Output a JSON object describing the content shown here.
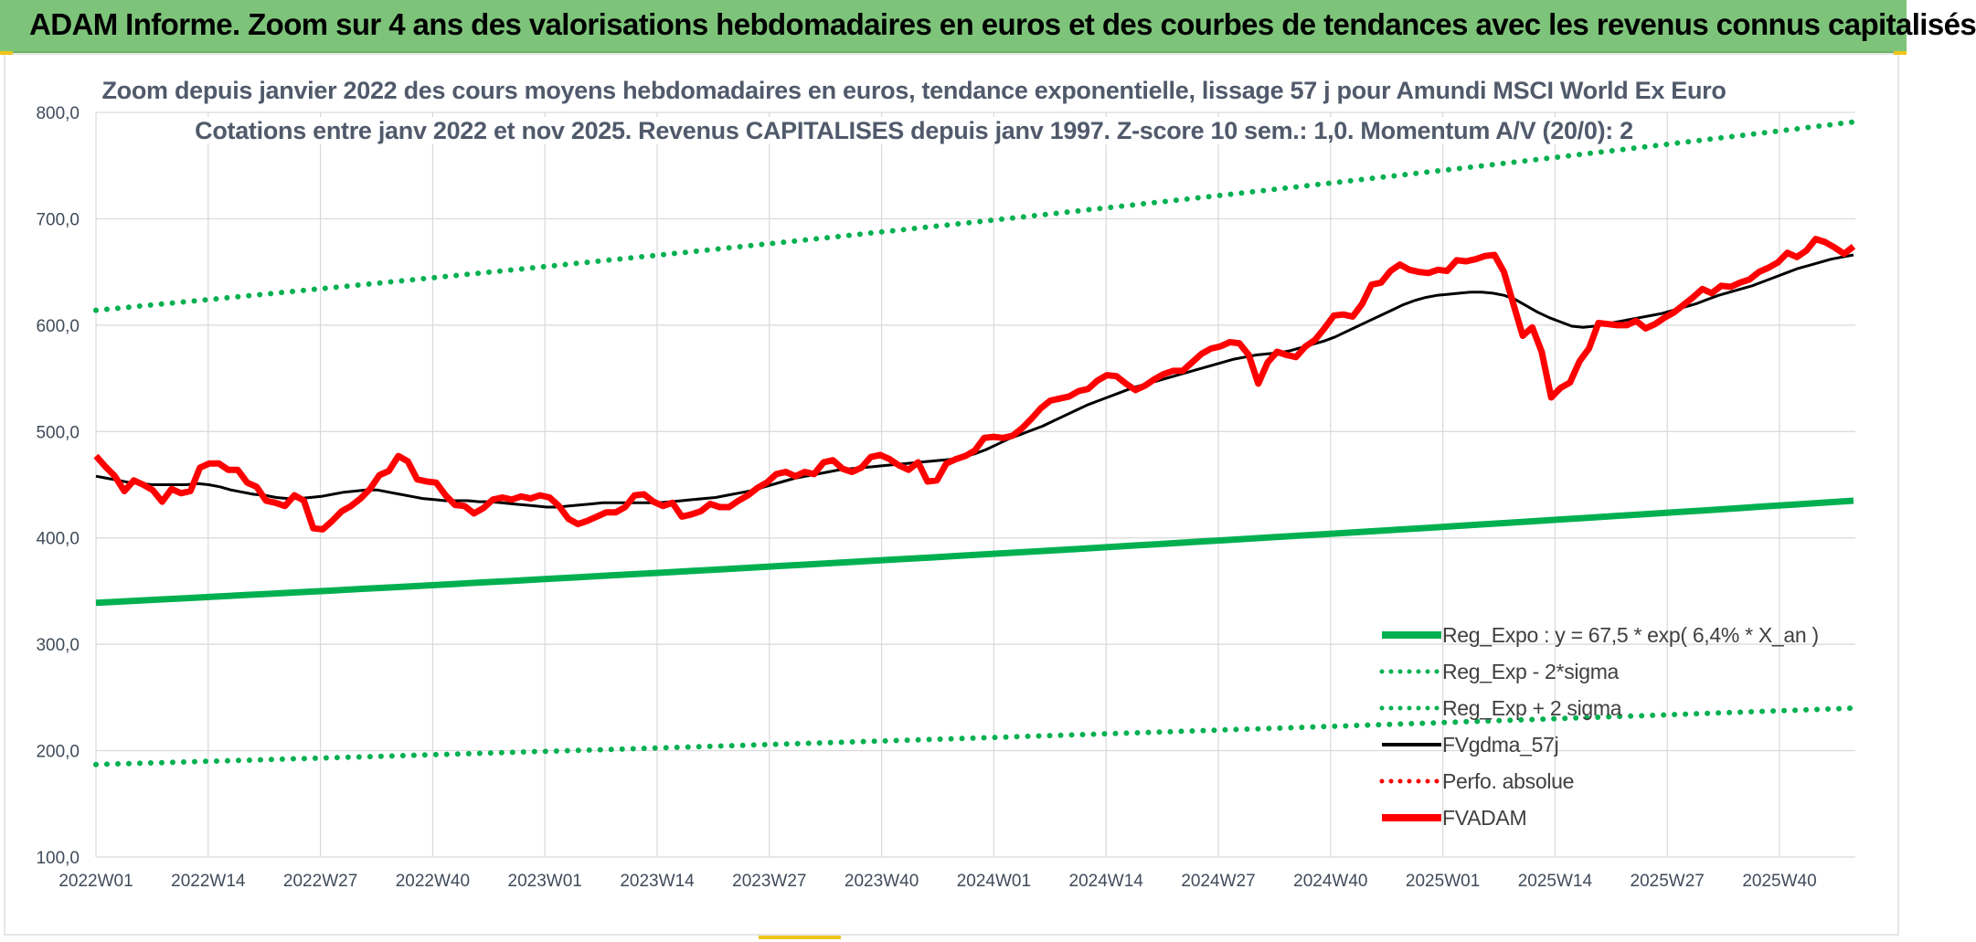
{
  "header": {
    "title": "ADAM Informe. Zoom sur 4 ans des valorisations hebdomadaires en euros et des courbes de tendances avec les revenus connus capitalisés"
  },
  "colors": {
    "banner": "#7dc47a",
    "reg_expo": "#00b050",
    "fvgdma": "#000000",
    "fvadam": "#ff0000",
    "grid": "#d9d9d9",
    "axis_text": "#404b5a"
  },
  "chart_data": {
    "type": "line",
    "title": "Zoom depuis janvier 2022 des cours moyens hebdomadaires en euros, tendance exponentielle, lissage 57 j pour Amundi MSCI World Ex Euro",
    "subtitle": "Cotations entre janv 2022 et nov 2025. Revenus CAPITALISES depuis janv 1997. Z-score 10 sem.: 1,0. Momentum A/V (20/0): 2",
    "ylim": [
      100,
      800
    ],
    "y_ticks": [
      "100,0",
      "200,0",
      "300,0",
      "400,0",
      "500,0",
      "600,0",
      "700,0",
      "800,0"
    ],
    "x_ticks": [
      "2022W01",
      "2022W14",
      "2022W27",
      "2022W40",
      "2023W01",
      "2023W14",
      "2023W27",
      "2023W40",
      "2024W01",
      "2024W14",
      "2024W27",
      "2024W40",
      "2025W01",
      "2025W14",
      "2025W27",
      "2025W40"
    ],
    "grid": true,
    "legend_position": "bottom-right",
    "series": [
      {
        "name": "Reg_Expo : y = 67,5 * exp( 6,4% *  X_an )",
        "style": "solid-thick",
        "color": "#00b050",
        "start": 339,
        "end": 435
      },
      {
        "name": "Reg_Exp - 2*sigma",
        "style": "dotted",
        "color": "#00b050",
        "start": 187,
        "end": 240
      },
      {
        "name": "Reg_Exp + 2 sigma",
        "style": "dotted",
        "color": "#00b050",
        "start": 614,
        "end": 791
      },
      {
        "name": "FVgdma_57j",
        "style": "solid",
        "color": "#000000",
        "values": [
          458,
          456,
          454,
          452,
          451,
          450,
          450,
          450,
          450,
          451,
          450,
          448,
          445,
          443,
          441,
          440,
          438,
          437,
          437,
          438,
          439,
          441,
          443,
          444,
          445,
          445,
          443,
          441,
          439,
          437,
          436,
          435,
          435,
          435,
          434,
          434,
          433,
          432,
          431,
          430,
          429,
          429,
          430,
          431,
          432,
          433,
          433,
          433,
          433,
          433,
          433,
          434,
          435,
          436,
          437,
          438,
          440,
          442,
          444,
          447,
          450,
          453,
          456,
          458,
          460,
          462,
          464,
          465,
          466,
          467,
          468,
          469,
          470,
          471,
          472,
          473,
          474,
          476,
          479,
          483,
          488,
          493,
          497,
          501,
          505,
          510,
          515,
          520,
          525,
          529,
          533,
          537,
          541,
          544,
          547,
          550,
          553,
          556,
          559,
          562,
          565,
          568,
          570,
          572,
          573,
          574,
          576,
          579,
          582,
          585,
          589,
          594,
          599,
          604,
          609,
          614,
          619,
          623,
          626,
          628,
          629,
          630,
          631,
          631,
          630,
          628,
          624,
          618,
          612,
          607,
          603,
          599,
          598,
          599,
          601,
          603,
          605,
          607,
          609,
          611,
          614,
          617,
          620,
          624,
          628,
          631,
          634,
          637,
          641,
          645,
          649,
          653,
          656,
          659,
          662,
          664,
          666
        ]
      },
      {
        "name": "Perfo. absolue",
        "style": "dotted",
        "color": "#ff0000",
        "values": []
      },
      {
        "name": "FVADAM",
        "style": "solid-thick",
        "color": "#ff0000",
        "values": [
          477,
          467,
          458,
          444,
          454,
          450,
          445,
          434,
          446,
          442,
          444,
          466,
          470,
          470,
          464,
          464,
          452,
          448,
          435,
          433,
          430,
          440,
          435,
          409,
          408,
          416,
          425,
          430,
          437,
          446,
          459,
          463,
          477,
          472,
          455,
          453,
          452,
          440,
          431,
          430,
          423,
          428,
          436,
          438,
          436,
          439,
          437,
          440,
          438,
          430,
          418,
          413,
          416,
          420,
          424,
          424,
          429,
          440,
          441,
          434,
          430,
          433,
          420,
          422,
          425,
          432,
          429,
          429,
          435,
          440,
          447,
          452,
          460,
          462,
          458,
          462,
          460,
          471,
          473,
          465,
          462,
          466,
          476,
          478,
          474,
          468,
          464,
          471,
          453,
          454,
          470,
          474,
          477,
          482,
          494,
          495,
          494,
          496,
          503,
          512,
          522,
          529,
          531,
          533,
          538,
          540,
          548,
          553,
          552,
          545,
          539,
          543,
          549,
          554,
          557,
          557,
          565,
          573,
          578,
          580,
          584,
          583,
          572,
          545,
          565,
          575,
          572,
          570,
          580,
          586,
          597,
          609,
          610,
          608,
          620,
          638,
          640,
          651,
          657,
          652,
          650,
          649,
          652,
          651,
          661,
          660,
          662,
          665,
          666,
          650,
          620,
          590,
          598,
          575,
          532,
          541,
          546,
          566,
          578,
          602,
          601,
          600,
          600,
          604,
          597,
          601,
          607,
          612,
          619,
          626,
          634,
          630,
          637,
          636,
          640,
          643,
          650,
          654,
          659,
          668,
          664,
          670,
          681,
          678,
          673,
          667,
          674
        ]
      }
    ]
  }
}
